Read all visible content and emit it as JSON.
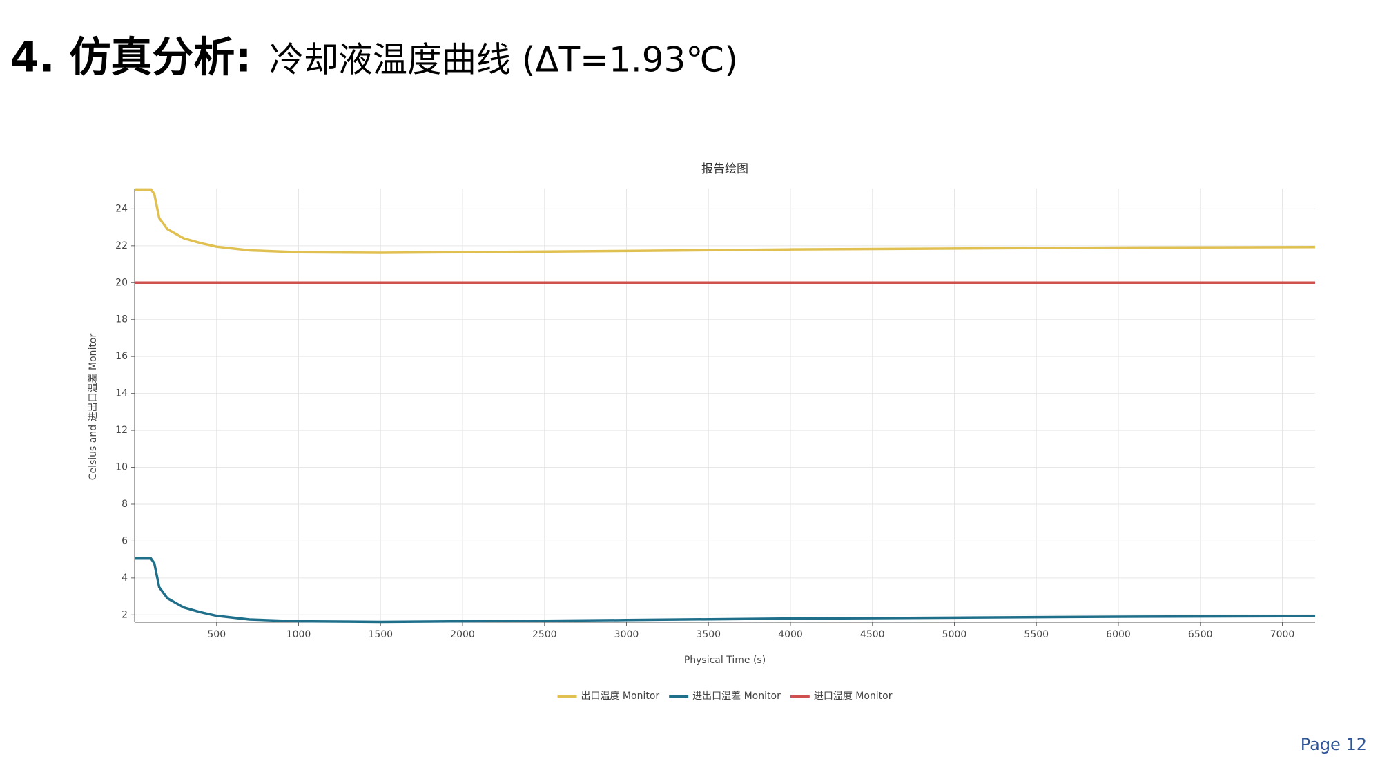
{
  "header": {
    "number": "4. 仿真分析:",
    "title": "冷却液温度曲线 (ΔT=1.93℃)"
  },
  "chart_data": {
    "type": "line",
    "title": "报告绘图",
    "x_label": "Physical Time (s)",
    "y_label": "Celsius and 进出口温差 Monitor",
    "x": [
      0,
      100,
      120,
      150,
      200,
      300,
      400,
      500,
      700,
      1000,
      1500,
      2000,
      3000,
      4000,
      5000,
      6000,
      7200
    ],
    "series": [
      {
        "name": "出口温度 Monitor",
        "color": "#e0c050",
        "values": [
          25.05,
          25.05,
          24.8,
          23.5,
          22.9,
          22.4,
          22.15,
          21.95,
          21.75,
          21.65,
          21.62,
          21.65,
          21.72,
          21.8,
          21.85,
          21.9,
          21.93
        ]
      },
      {
        "name": "进出口温差 Monitor",
        "color": "#1f6f8b",
        "values": [
          5.05,
          5.05,
          4.8,
          3.5,
          2.9,
          2.4,
          2.15,
          1.95,
          1.75,
          1.65,
          1.62,
          1.65,
          1.72,
          1.8,
          1.85,
          1.9,
          1.93
        ]
      },
      {
        "name": "进口温度 Monitor",
        "color": "#d05050",
        "values": [
          20,
          20,
          20,
          20,
          20,
          20,
          20,
          20,
          20,
          20,
          20,
          20,
          20,
          20,
          20,
          20,
          20
        ]
      }
    ],
    "xlim": [
      0,
      7200
    ],
    "ylim": [
      1.6,
      25.1
    ],
    "xticks": [
      500,
      1000,
      1500,
      2000,
      2500,
      3000,
      3500,
      4000,
      4500,
      5000,
      5500,
      6000,
      6500,
      7000
    ],
    "yticks": [
      2,
      4,
      6,
      8,
      10,
      12,
      14,
      16,
      18,
      20,
      22,
      24
    ],
    "grid": true,
    "legend": "bottom"
  },
  "footer": {
    "page": "Page 12"
  }
}
